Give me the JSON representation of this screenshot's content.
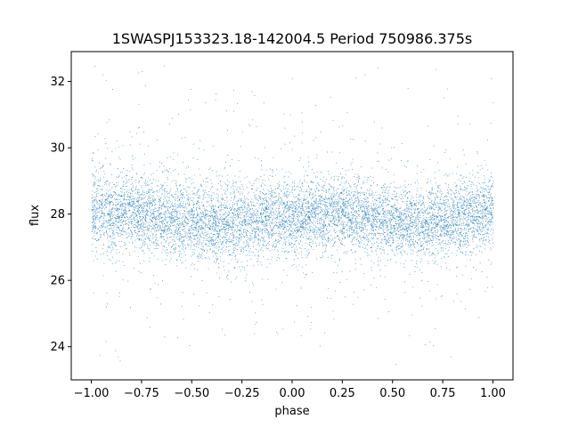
{
  "chart_data": {
    "type": "scatter",
    "title": "1SWASPJ153323.18-142004.5 Period 750986.375s",
    "xlabel": "phase",
    "ylabel": "flux",
    "xlim": [
      -1.1,
      1.1
    ],
    "ylim": [
      23.0,
      32.9
    ],
    "xticks": [
      -1.0,
      -0.75,
      -0.5,
      -0.25,
      0.0,
      0.25,
      0.5,
      0.75,
      1.0
    ],
    "xtick_labels": [
      "−1.00",
      "−0.75",
      "−0.50",
      "−0.25",
      "0.00",
      "0.25",
      "0.50",
      "0.75",
      "1.00"
    ],
    "yticks": [
      24,
      26,
      28,
      30,
      32
    ],
    "ytick_labels": [
      "24",
      "26",
      "28",
      "30",
      "32"
    ],
    "grid": false,
    "marker_color": "#1f77b4",
    "series": [
      {
        "x_range": [
          -1.0,
          1.0
        ],
        "core_band": [
          26.8,
          29.0
        ],
        "typical_center": 28.0,
        "outlier_range": [
          23.4,
          32.5
        ],
        "points": [
          [
            -1.0,
            28.1
          ],
          [
            -0.9,
            28.0
          ],
          [
            -0.8,
            28.1
          ],
          [
            -0.75,
            28.0
          ],
          [
            -0.6,
            27.9
          ],
          [
            -0.5,
            27.8
          ],
          [
            -0.4,
            27.7
          ],
          [
            -0.25,
            27.8
          ],
          [
            -0.1,
            27.9
          ],
          [
            0.0,
            27.9
          ],
          [
            0.1,
            28.0
          ],
          [
            0.2,
            28.1
          ],
          [
            0.3,
            28.0
          ],
          [
            0.4,
            27.9
          ],
          [
            0.5,
            27.8
          ],
          [
            0.6,
            27.7
          ],
          [
            0.75,
            27.8
          ],
          [
            0.9,
            28.0
          ],
          [
            1.0,
            28.1
          ]
        ]
      }
    ]
  }
}
